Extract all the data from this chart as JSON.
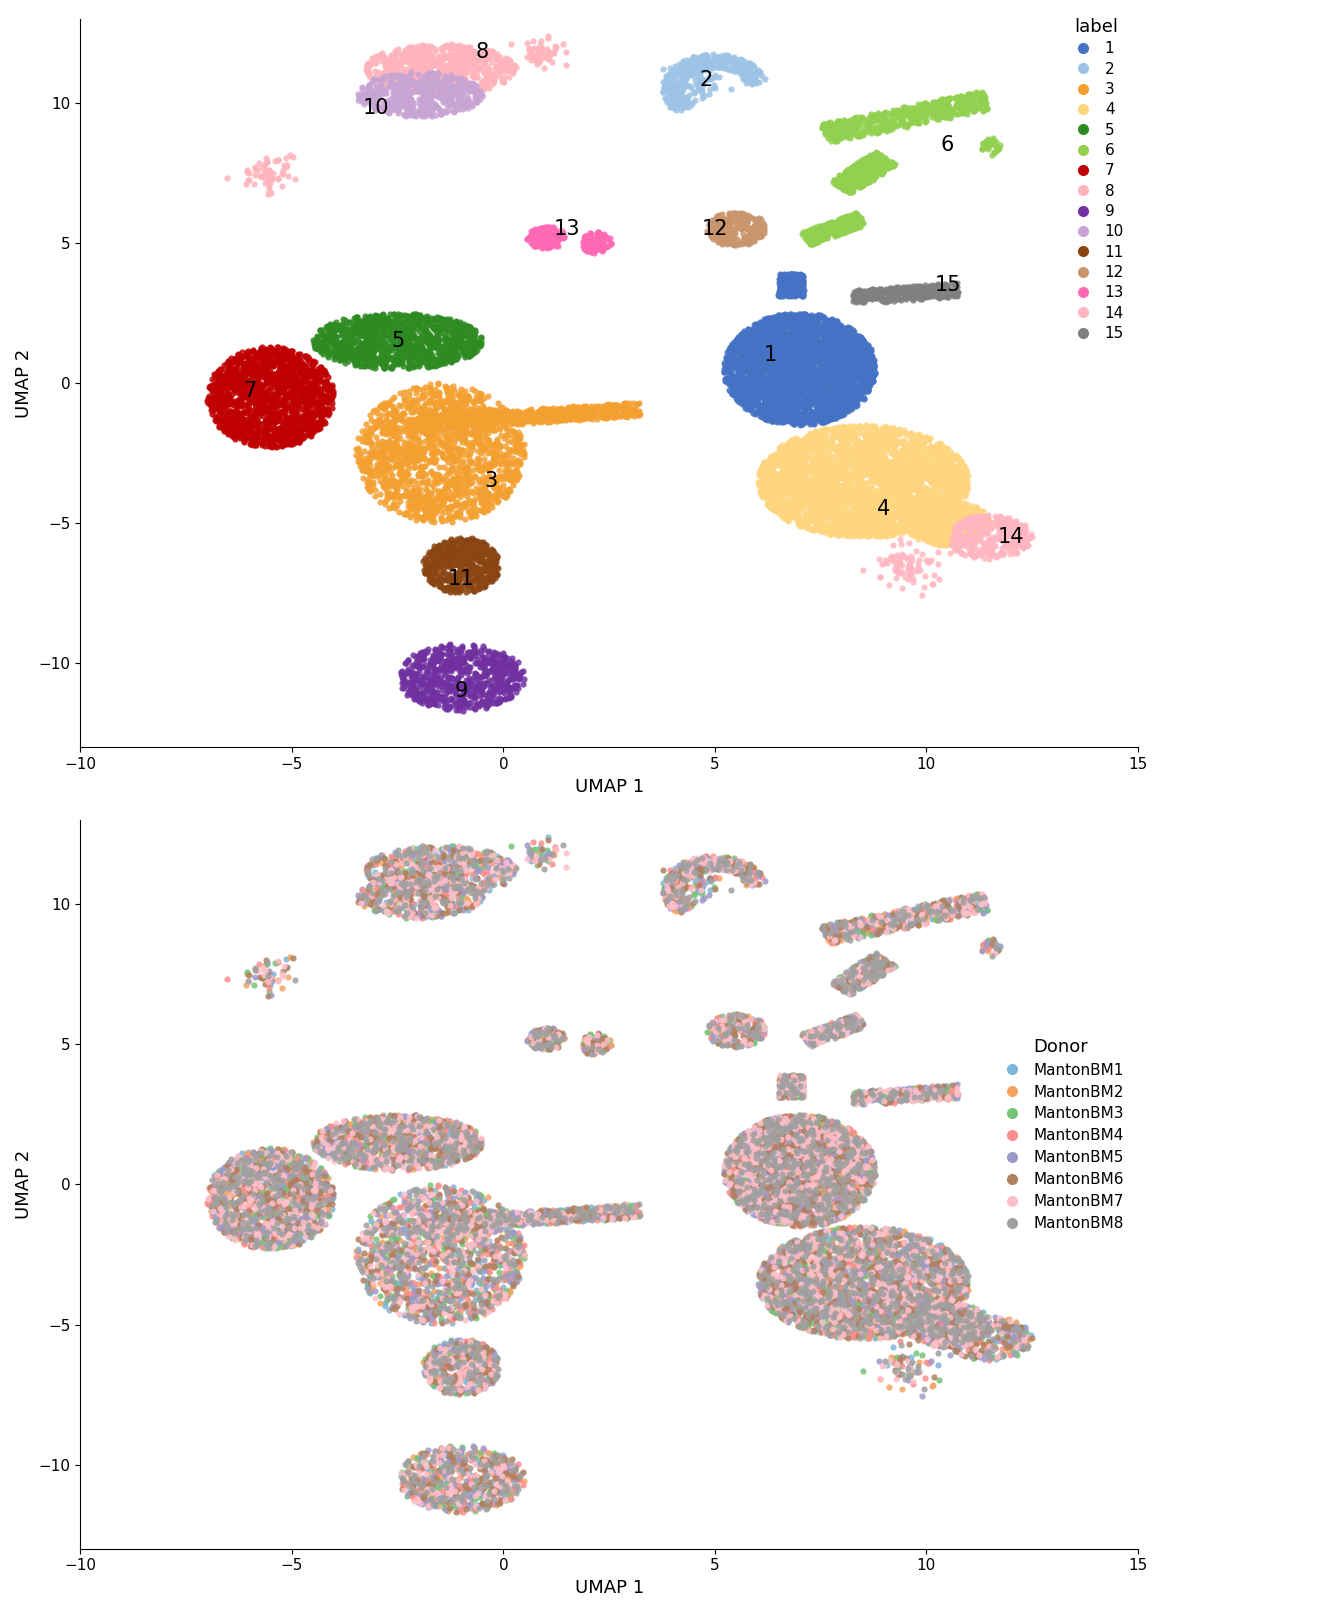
{
  "cluster_colors": {
    "1": "#4472C4",
    "2": "#9DC3E6",
    "3": "#F4A030",
    "4": "#FFD580",
    "5": "#2E8B22",
    "6": "#92D050",
    "7": "#C00000",
    "8": "#FFB3BA",
    "9": "#7030A0",
    "10": "#C8A4D4",
    "11": "#8B4513",
    "12": "#C9956C",
    "13": "#FF69B4",
    "14": "#FFB6C1",
    "15": "#808080"
  },
  "donor_colors": {
    "MantonBM1": "#7EB6D9",
    "MantonBM2": "#F4A460",
    "MantonBM3": "#74C476",
    "MantonBM4": "#FC8D8D",
    "MantonBM5": "#9E9AC8",
    "MantonBM6": "#B08060",
    "MantonBM7": "#FFC0CB",
    "MantonBM8": "#A0A0A0"
  },
  "xlabel": "UMAP 1",
  "ylabel": "UMAP 2",
  "xlim": [
    -10,
    15
  ],
  "ylim": [
    -13,
    13
  ],
  "label_title": "label",
  "donor_title": "Donor"
}
